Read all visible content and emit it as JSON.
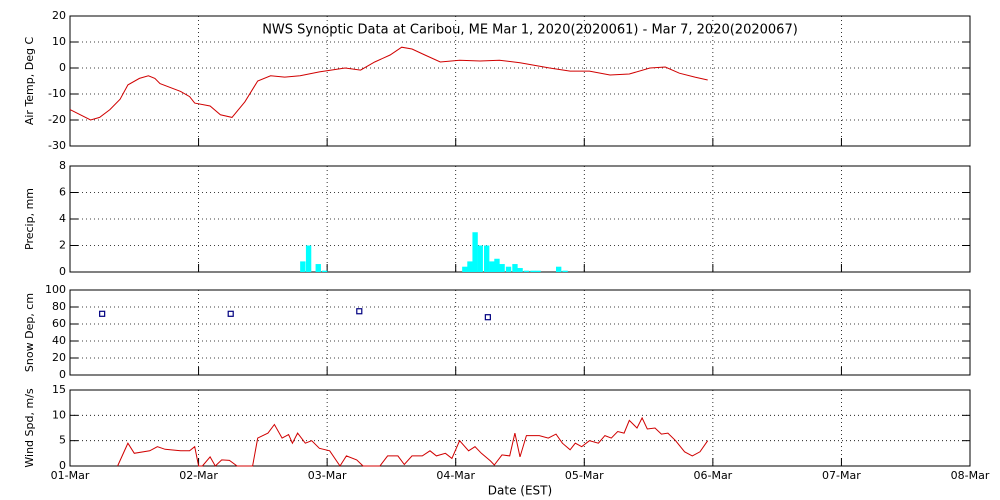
{
  "chart_data": [
    {
      "type": "line",
      "title": "NWS Synoptic Data at Caribou, ME   Mar  1, 2020(2020061) - Mar  7, 2020(2020067)",
      "ylabel": "Air Temp, Deg C",
      "color": "#d00000",
      "grid": true,
      "xlim": [
        0,
        7
      ],
      "xticks": [
        0,
        1,
        2,
        3,
        4,
        5,
        6,
        7
      ],
      "ylim": [
        -30,
        20
      ],
      "yticks": [
        -30,
        -20,
        -10,
        0,
        10,
        20
      ],
      "x": [
        0,
        0.16,
        0.23,
        0.31,
        0.39,
        0.45,
        0.54,
        0.61,
        0.66,
        0.7,
        0.86,
        0.93,
        0.97,
        1.09,
        1.17,
        1.26,
        1.36,
        1.46,
        1.56,
        1.67,
        1.79,
        1.94,
        2.14,
        2.26,
        2.37,
        2.49,
        2.58,
        2.66,
        2.76,
        2.88,
        3.03,
        3.19,
        3.34,
        3.5,
        3.73,
        3.89,
        4.04,
        4.2,
        4.35,
        4.51,
        4.63,
        4.74,
        4.86,
        4.96
      ],
      "values": [
        -16,
        -20,
        -19,
        -16,
        -12,
        -6.5,
        -4,
        -3,
        -4,
        -6,
        -9,
        -11,
        -13.5,
        -14.6,
        -18,
        -19,
        -13,
        -5,
        -3,
        -3.5,
        -3,
        -1.5,
        0,
        -0.8,
        2.3,
        5,
        8,
        7.3,
        5,
        2.3,
        3,
        2.7,
        3,
        2,
        0,
        -1.2,
        -1.2,
        -2.7,
        -2.3,
        0,
        0.4,
        -2,
        -3.5,
        -4.6
      ]
    },
    {
      "type": "bar",
      "ylabel": "Precip, mm",
      "color": "#00ffff",
      "grid": true,
      "xlim": [
        0,
        7
      ],
      "xticks": [
        0,
        1,
        2,
        3,
        4,
        5,
        6,
        7
      ],
      "ylim": [
        0,
        8
      ],
      "yticks": [
        0,
        2,
        4,
        6,
        8
      ],
      "x": [
        1.79,
        1.835,
        1.91,
        1.96,
        3.05,
        3.09,
        3.13,
        3.17,
        3.22,
        3.26,
        3.3,
        3.34,
        3.39,
        3.44,
        3.48,
        3.53,
        3.58,
        3.62,
        3.78,
        3.83
      ],
      "values": [
        0.8,
        2,
        0.6,
        0.1,
        0.4,
        0.8,
        3,
        2,
        2,
        0.8,
        1,
        0.6,
        0.4,
        0.6,
        0.3,
        0.1,
        0.1,
        0.1,
        0.4,
        0.1
      ]
    },
    {
      "type": "scatter",
      "ylabel": "Snow Dep, cm",
      "color": "#000080",
      "grid": true,
      "xlim": [
        0,
        7
      ],
      "xticks": [
        0,
        1,
        2,
        3,
        4,
        5,
        6,
        7
      ],
      "ylim": [
        0,
        100
      ],
      "yticks": [
        0,
        20,
        40,
        60,
        80,
        100
      ],
      "x": [
        0.25,
        1.25,
        2.25,
        3.25
      ],
      "values": [
        72,
        72,
        75,
        68
      ]
    },
    {
      "type": "line",
      "ylabel": "Wind Spd, m/s",
      "xlabel": "Date (EST)",
      "color": "#d00000",
      "grid": true,
      "xlim": [
        0,
        7
      ],
      "xticks": [
        {
          "value": 0,
          "label": "01-Mar"
        },
        {
          "value": 1,
          "label": "02-Mar"
        },
        {
          "value": 2,
          "label": "03-Mar"
        },
        {
          "value": 3,
          "label": "04-Mar"
        },
        {
          "value": 4,
          "label": "05-Mar"
        },
        {
          "value": 5,
          "label": "06-Mar"
        },
        {
          "value": 6,
          "label": "07-Mar"
        },
        {
          "value": 7,
          "label": "08-Mar"
        }
      ],
      "ylim": [
        0,
        15
      ],
      "yticks": [
        0,
        5,
        10,
        15
      ],
      "x": [
        0.37,
        0.45,
        0.5,
        0.62,
        0.68,
        0.74,
        0.86,
        0.93,
        0.97,
        1.0,
        1.03,
        1.09,
        1.13,
        1.18,
        1.24,
        1.3,
        1.42,
        1.46,
        1.54,
        1.59,
        1.65,
        1.7,
        1.73,
        1.77,
        1.83,
        1.88,
        1.94,
        2.02,
        2.1,
        2.15,
        2.23,
        2.28,
        2.41,
        2.47,
        2.55,
        2.6,
        2.66,
        2.74,
        2.8,
        2.85,
        2.92,
        2.97,
        3.03,
        3.1,
        3.15,
        3.2,
        3.27,
        3.3,
        3.36,
        3.42,
        3.46,
        3.5,
        3.55,
        3.65,
        3.72,
        3.78,
        3.83,
        3.89,
        3.93,
        3.98,
        4.04,
        4.11,
        4.16,
        4.21,
        4.26,
        4.31,
        4.35,
        4.41,
        4.45,
        4.49,
        4.55,
        4.6,
        4.65,
        4.71,
        4.78,
        4.84,
        4.9,
        4.96
      ],
      "values": [
        0,
        4.5,
        2.5,
        3,
        3.8,
        3.3,
        3,
        3,
        3.8,
        0,
        0,
        1.8,
        0,
        1.2,
        1.1,
        0,
        0,
        5.5,
        6.5,
        8.2,
        5.5,
        6.2,
        4.5,
        6.5,
        4.5,
        5,
        3.5,
        3,
        0,
        2,
        1.2,
        0,
        0,
        2,
        2,
        0.3,
        2,
        2,
        3,
        2,
        2.5,
        1.5,
        5,
        3,
        3.8,
        2.5,
        1,
        0.2,
        2.2,
        2,
        6.5,
        1.8,
        6,
        6,
        5.5,
        6.3,
        4.5,
        3.2,
        4.5,
        3.8,
        5,
        4.5,
        6,
        5.5,
        6.8,
        6.5,
        9,
        7.5,
        9.5,
        7.3,
        7.5,
        6.3,
        6.5,
        5,
        2.8,
        2,
        2.8,
        5
      ]
    }
  ]
}
